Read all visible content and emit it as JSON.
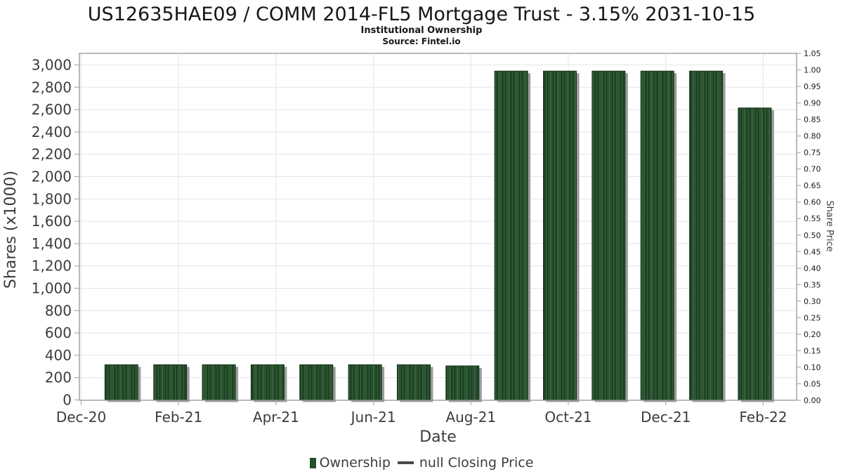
{
  "header": {
    "title": "US12635HAE09 / COMM 2014-FL5 Mortgage Trust - 3.15% 2031-10-15",
    "subtitle": "Institutional Ownership",
    "source": "Source: Fintel.io"
  },
  "legend": {
    "ownership_label": "Ownership",
    "price_label": "null Closing Price"
  },
  "colors": {
    "bar_base": "#1d4323",
    "bar_hatch_light": "#3a6540",
    "bar_hatch_bright": "#5d8262",
    "bar_edge": "#16351b",
    "bar_shadow": "#9c9c9c",
    "grid": "#e4e4e4",
    "frame": "#949494",
    "tick": "#ababab",
    "tick_text": "#3c3c3c",
    "small_tick_text": "#1a1a1a",
    "axis_label_text": "#3c3c3c",
    "legend_marker_green": "#24512a",
    "legend_dash": "#4a4a4a"
  },
  "chart_data": {
    "type": "bar",
    "title": "US12635HAE09 / COMM 2014-FL5 Mortgage Trust - 3.15% 2031-10-15",
    "subtitle": "Institutional Ownership",
    "source": "Source: Fintel.io",
    "xlabel": "Date",
    "ylabel": "Shares (x1000)",
    "y2label": "Share Price",
    "categories": [
      "Jan-21",
      "Feb-21",
      "Mar-21",
      "Apr-21",
      "May-21",
      "Jun-21",
      "Jul-21",
      "Aug-21",
      "Sep-21",
      "Oct-21",
      "Nov-21",
      "Dec-21",
      "Jan-22",
      "Feb-22"
    ],
    "series": [
      {
        "name": "Ownership",
        "axis": "left",
        "unit": "shares_x1000",
        "values": [
          315,
          315,
          315,
          315,
          315,
          315,
          315,
          305,
          2945,
          2945,
          2945,
          2945,
          2945,
          2615
        ]
      }
    ],
    "price_series": {
      "name": "null Closing Price",
      "values": null
    },
    "x_axis": {
      "tick_labels": [
        "Dec-20",
        "Feb-21",
        "Apr-21",
        "Jun-21",
        "Aug-21",
        "Oct-21",
        "Dec-21",
        "Feb-22"
      ],
      "months_per_labeled_tick": 2
    },
    "y_axis": {
      "min": 0,
      "max": 3104,
      "tick_step": 200,
      "tick_values": [
        0,
        200,
        400,
        600,
        800,
        1000,
        1200,
        1400,
        1600,
        1800,
        2000,
        2200,
        2400,
        2600,
        2800,
        3000
      ],
      "tick_labels": [
        "0",
        "200",
        "400",
        "600",
        "800",
        "1,000",
        "1,200",
        "1,400",
        "1,600",
        "1,800",
        "2,000",
        "2,200",
        "2,400",
        "2,600",
        "2,800",
        "3,000"
      ]
    },
    "y2_axis": {
      "min": 0,
      "max": 1.05,
      "tick_step": 0.05,
      "tick_labels": [
        "0.00",
        "0.05",
        "0.10",
        "0.15",
        "0.20",
        "0.25",
        "0.30",
        "0.35",
        "0.40",
        "0.45",
        "0.50",
        "0.55",
        "0.60",
        "0.65",
        "0.70",
        "0.75",
        "0.80",
        "0.85",
        "0.90",
        "0.95",
        "1.00",
        "1.05"
      ]
    },
    "grid": true,
    "legend_position": "bottom"
  }
}
